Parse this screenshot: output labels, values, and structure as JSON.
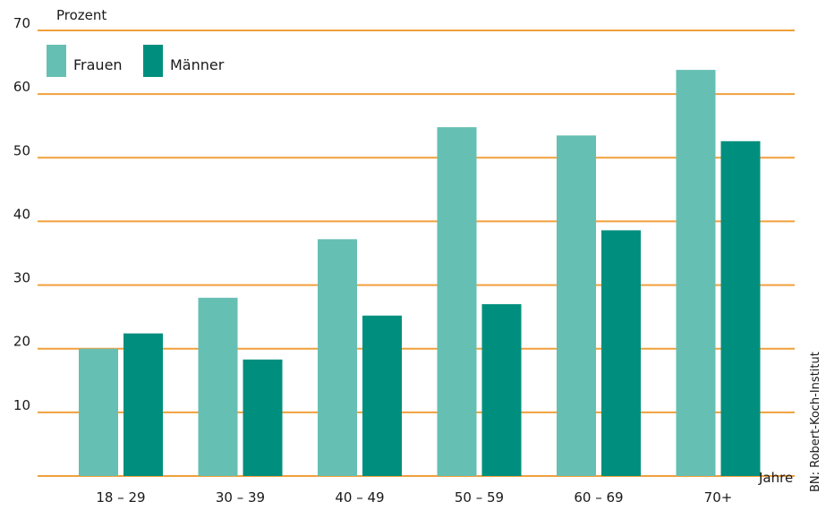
{
  "chart_data": {
    "type": "bar",
    "ylabel": "Prozent",
    "xlabel": "Jahre",
    "ylim": [
      0,
      70
    ],
    "yticks": [
      10,
      20,
      30,
      40,
      50,
      60,
      70
    ],
    "grid": true,
    "legend_placement": "top-left",
    "categories": [
      "18 – 29",
      "30 – 39",
      "40 – 49",
      "50 – 59",
      "60 – 69",
      "70+"
    ],
    "series": [
      {
        "name": "Frauen",
        "color": "#66bfb3",
        "values": [
          20,
          28,
          37.2,
          54.8,
          53.5,
          63.8
        ]
      },
      {
        "name": "Männer",
        "color": "#008f7e",
        "values": [
          22.4,
          18.3,
          25.2,
          27,
          38.6,
          52.6
        ]
      }
    ],
    "grid_color": "#f0a03c",
    "source": "BN: Robert-Koch-Institut"
  }
}
